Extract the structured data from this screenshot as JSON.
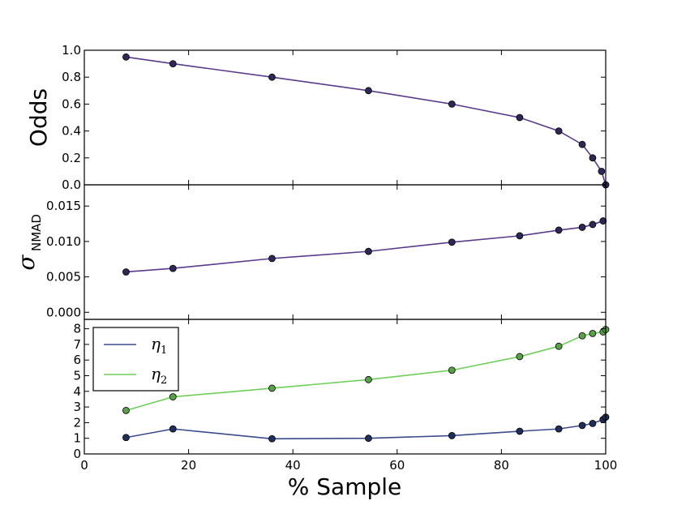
{
  "chart_data": {
    "type": "line",
    "xlabel": "% Sample",
    "xlim": [
      0,
      100
    ],
    "x_ticks": [
      "0",
      "20",
      "40",
      "60",
      "80",
      "100"
    ],
    "panels": [
      {
        "ylabel": "Odds",
        "ylim": [
          0,
          1.0
        ],
        "y_ticks": [
          "0.0",
          "0.2",
          "0.4",
          "0.6",
          "0.8",
          "1.0"
        ],
        "series": [
          {
            "color": "#5a3a8c",
            "marker_color": "#2e2857",
            "x": [
              8,
              17,
              36,
              54.5,
              70.5,
              83.5,
              91,
              95.5,
              97.5,
              99.2,
              100
            ],
            "y": [
              0.95,
              0.9,
              0.8,
              0.7,
              0.6,
              0.5,
              0.4,
              0.3,
              0.2,
              0.1,
              0.0
            ]
          }
        ]
      },
      {
        "ylabel_main": "σ",
        "ylabel_sub": "NMAD",
        "ylim": [
          -0.001,
          0.018
        ],
        "y_ticks": [
          "0.000",
          "0.005",
          "0.010",
          "0.015"
        ],
        "y_tick_values": [
          0.0,
          0.005,
          0.01,
          0.015
        ],
        "series": [
          {
            "color": "#5a3a8c",
            "marker_color": "#2e2857",
            "x": [
              8,
              17,
              36,
              54.5,
              70.5,
              83.5,
              91,
              95.5,
              97.5,
              99.5
            ],
            "y": [
              0.0057,
              0.0062,
              0.0076,
              0.0086,
              0.0099,
              0.0108,
              0.0116,
              0.012,
              0.0124,
              0.0129
            ]
          }
        ]
      },
      {
        "ylim": [
          0,
          8.6
        ],
        "y_ticks": [
          "0",
          "1",
          "2",
          "3",
          "4",
          "5",
          "6",
          "7",
          "8"
        ],
        "legend": {
          "placement": "upper-left",
          "entries": [
            {
              "symbol": "η",
              "subscript": "1",
              "color": "#3a4a8c"
            },
            {
              "symbol": "η",
              "subscript": "2",
              "color": "#6fcf5a"
            }
          ]
        },
        "series": [
          {
            "color": "#3a4a8c",
            "marker_color": "#1f2f5a",
            "x": [
              8,
              17,
              36,
              54.5,
              70.5,
              83.5,
              91,
              95.5,
              97.5,
              99.5,
              100
            ],
            "y": [
              1.05,
              1.6,
              0.97,
              1.0,
              1.17,
              1.45,
              1.6,
              1.82,
              1.95,
              2.2,
              2.35
            ]
          },
          {
            "color": "#6fcf5a",
            "marker_color": "#5aa04a",
            "x": [
              8,
              17,
              36,
              54.5,
              70.5,
              83.5,
              91,
              95.5,
              97.5,
              99.5,
              100
            ],
            "y": [
              2.78,
              3.65,
              4.2,
              4.75,
              5.35,
              6.22,
              6.88,
              7.55,
              7.7,
              7.8,
              7.95
            ]
          }
        ]
      }
    ]
  }
}
